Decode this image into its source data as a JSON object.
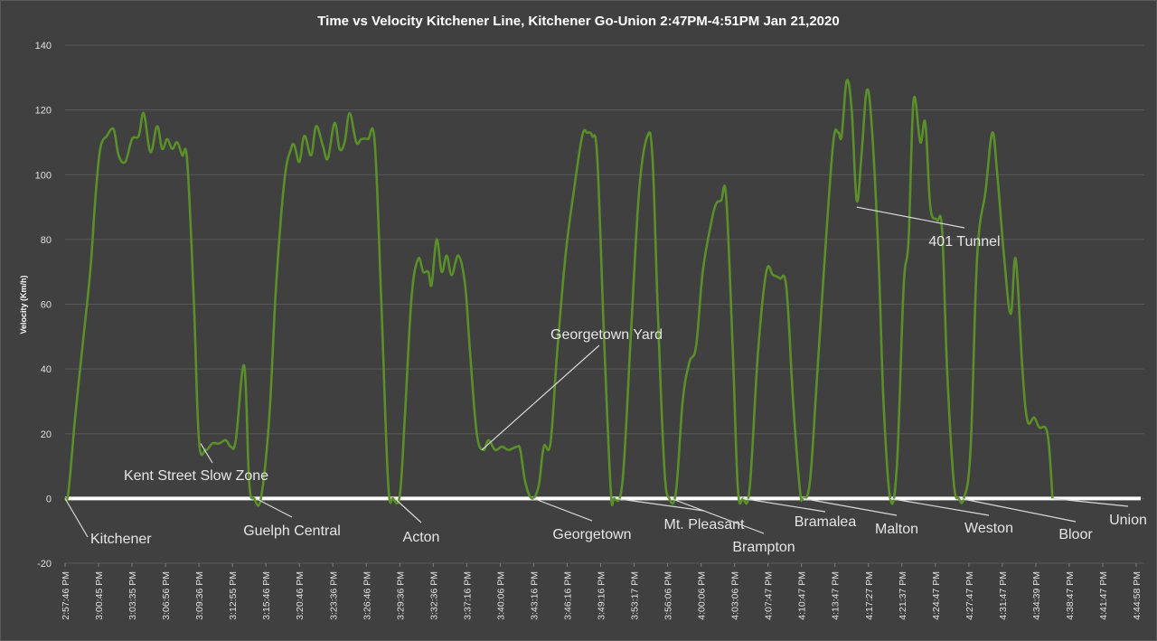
{
  "chart_data": {
    "type": "line",
    "title": "Time vs Velocity Kitchener Line, Kitchener Go-Union 2:47PM-4:51PM Jan 21,2020",
    "xlabel": "",
    "ylabel": "Velocity (Km/h)",
    "ylim": [
      -20,
      140
    ],
    "yticks": [
      -20,
      0,
      20,
      40,
      60,
      80,
      100,
      120,
      140
    ],
    "ytick_labels": [
      "-20",
      "0",
      "20",
      "40",
      "60",
      "80",
      "100",
      "120",
      "140"
    ],
    "xlim": [
      0,
      31
    ],
    "grid": true,
    "line_color": "#5a8f29",
    "zero_line_color": "#ffffff",
    "x_ticks": [
      {
        "pos": 0,
        "label": "2:57:46 PM"
      },
      {
        "pos": 1,
        "label": "3:00:45 PM"
      },
      {
        "pos": 2,
        "label": "3:03:35 PM"
      },
      {
        "pos": 3,
        "label": "3:06:56 PM"
      },
      {
        "pos": 4,
        "label": "3:09:36 PM"
      },
      {
        "pos": 5,
        "label": "3:12:55 PM"
      },
      {
        "pos": 6,
        "label": "3:15:46 PM"
      },
      {
        "pos": 7,
        "label": "3:20:46 PM"
      },
      {
        "pos": 8,
        "label": "3:23:36 PM"
      },
      {
        "pos": 9,
        "label": "3:26:46 PM"
      },
      {
        "pos": 10,
        "label": "3:29:36 PM"
      },
      {
        "pos": 11,
        "label": "3:32:36 PM"
      },
      {
        "pos": 12,
        "label": "3:37:16 PM"
      },
      {
        "pos": 13,
        "label": "3:40:06 PM"
      },
      {
        "pos": 14,
        "label": "3:43:16 PM"
      },
      {
        "pos": 15,
        "label": "3:46:16 PM"
      },
      {
        "pos": 16,
        "label": "3:49:16 PM"
      },
      {
        "pos": 17,
        "label": "3:53:17 PM"
      },
      {
        "pos": 18,
        "label": "3:56:06 PM"
      },
      {
        "pos": 19,
        "label": "4:00:06 PM"
      },
      {
        "pos": 20,
        "label": "4:03:06 PM"
      },
      {
        "pos": 21,
        "label": "4:07:47 PM"
      },
      {
        "pos": 22,
        "label": "4:10:47 PM"
      },
      {
        "pos": 23,
        "label": "4:13:47 PM"
      },
      {
        "pos": 24,
        "label": "4:17:27 PM"
      },
      {
        "pos": 25,
        "label": "4:21:37 PM"
      },
      {
        "pos": 26,
        "label": "4:24:47 PM"
      },
      {
        "pos": 27,
        "label": "4:27:47 PM"
      },
      {
        "pos": 28,
        "label": "4:31:47 PM"
      },
      {
        "pos": 29,
        "label": "4:34:39 PM"
      },
      {
        "pos": 30,
        "label": "4:38:47 PM"
      },
      {
        "pos": 31,
        "label": "4:41:47 PM"
      },
      {
        "pos": 32,
        "label": "4:44:58 PM"
      }
    ],
    "series": [
      {
        "name": "Velocity",
        "points": [
          [
            0,
            0
          ],
          [
            0.1,
            2
          ],
          [
            0.3,
            25
          ],
          [
            0.5,
            45
          ],
          [
            0.75,
            70
          ],
          [
            0.9,
            92
          ],
          [
            1.05,
            108
          ],
          [
            1.25,
            112
          ],
          [
            1.45,
            114
          ],
          [
            1.6,
            106
          ],
          [
            1.8,
            104
          ],
          [
            2.0,
            111
          ],
          [
            2.2,
            112
          ],
          [
            2.35,
            119
          ],
          [
            2.55,
            107
          ],
          [
            2.75,
            115
          ],
          [
            2.9,
            108
          ],
          [
            3.05,
            111
          ],
          [
            3.2,
            108
          ],
          [
            3.35,
            110
          ],
          [
            3.5,
            106
          ],
          [
            3.65,
            104
          ],
          [
            3.85,
            60
          ],
          [
            4.0,
            18
          ],
          [
            4.2,
            15
          ],
          [
            4.4,
            17
          ],
          [
            4.6,
            17
          ],
          [
            4.8,
            18
          ],
          [
            4.95,
            16
          ],
          [
            5.1,
            18
          ],
          [
            5.35,
            41
          ],
          [
            5.5,
            5
          ],
          [
            5.65,
            0
          ],
          [
            5.85,
            0
          ],
          [
            6.1,
            25
          ],
          [
            6.3,
            65
          ],
          [
            6.55,
            98
          ],
          [
            6.75,
            108
          ],
          [
            6.85,
            109
          ],
          [
            7.0,
            104
          ],
          [
            7.15,
            112
          ],
          [
            7.35,
            106
          ],
          [
            7.5,
            115
          ],
          [
            7.7,
            109
          ],
          [
            7.85,
            105
          ],
          [
            8.05,
            116
          ],
          [
            8.2,
            108
          ],
          [
            8.35,
            110
          ],
          [
            8.5,
            119
          ],
          [
            8.7,
            110
          ],
          [
            8.85,
            111
          ],
          [
            9.05,
            111
          ],
          [
            9.25,
            110
          ],
          [
            9.45,
            60
          ],
          [
            9.65,
            5
          ],
          [
            9.8,
            0
          ],
          [
            10.0,
            1
          ],
          [
            10.15,
            25
          ],
          [
            10.35,
            62
          ],
          [
            10.55,
            74
          ],
          [
            10.7,
            70
          ],
          [
            10.85,
            70
          ],
          [
            10.95,
            66
          ],
          [
            11.1,
            80
          ],
          [
            11.25,
            70
          ],
          [
            11.4,
            75
          ],
          [
            11.55,
            69
          ],
          [
            11.75,
            75
          ],
          [
            11.95,
            66
          ],
          [
            12.1,
            45
          ],
          [
            12.3,
            20
          ],
          [
            12.5,
            15
          ],
          [
            12.65,
            18
          ],
          [
            12.85,
            15
          ],
          [
            13.05,
            16
          ],
          [
            13.25,
            15
          ],
          [
            13.5,
            16
          ],
          [
            13.6,
            15
          ],
          [
            13.75,
            5
          ],
          [
            13.95,
            0
          ],
          [
            14.15,
            4
          ],
          [
            14.3,
            16
          ],
          [
            14.5,
            17
          ],
          [
            14.7,
            45
          ],
          [
            14.95,
            75
          ],
          [
            15.2,
            95
          ],
          [
            15.45,
            112
          ],
          [
            15.6,
            113
          ],
          [
            15.75,
            112
          ],
          [
            15.9,
            105
          ],
          [
            16.1,
            50
          ],
          [
            16.3,
            3
          ],
          [
            16.4,
            0
          ],
          [
            16.65,
            5
          ],
          [
            16.9,
            50
          ],
          [
            17.15,
            95
          ],
          [
            17.4,
            112
          ],
          [
            17.55,
            105
          ],
          [
            17.7,
            60
          ],
          [
            17.9,
            10
          ],
          [
            18.05,
            0
          ],
          [
            18.25,
            2
          ],
          [
            18.45,
            30
          ],
          [
            18.65,
            42
          ],
          [
            18.85,
            47
          ],
          [
            19.05,
            70
          ],
          [
            19.3,
            85
          ],
          [
            19.45,
            91
          ],
          [
            19.6,
            92
          ],
          [
            19.75,
            93
          ],
          [
            19.95,
            45
          ],
          [
            20.1,
            3
          ],
          [
            20.25,
            0
          ],
          [
            20.45,
            3
          ],
          [
            20.7,
            45
          ],
          [
            20.95,
            70
          ],
          [
            21.15,
            69
          ],
          [
            21.35,
            68
          ],
          [
            21.55,
            65
          ],
          [
            21.75,
            30
          ],
          [
            21.95,
            3
          ],
          [
            22.05,
            0
          ],
          [
            22.25,
            5
          ],
          [
            22.45,
            35
          ],
          [
            22.7,
            75
          ],
          [
            22.95,
            110
          ],
          [
            23.1,
            113
          ],
          [
            23.2,
            112
          ],
          [
            23.35,
            129
          ],
          [
            23.5,
            120
          ],
          [
            23.65,
            92
          ],
          [
            23.8,
            107
          ],
          [
            23.95,
            126
          ],
          [
            24.1,
            115
          ],
          [
            24.3,
            75
          ],
          [
            24.45,
            30
          ],
          [
            24.65,
            0
          ],
          [
            24.85,
            10
          ],
          [
            25.05,
            65
          ],
          [
            25.2,
            80
          ],
          [
            25.35,
            123
          ],
          [
            25.55,
            110
          ],
          [
            25.7,
            116
          ],
          [
            25.85,
            90
          ],
          [
            26.05,
            86
          ],
          [
            26.2,
            83
          ],
          [
            26.35,
            40
          ],
          [
            26.55,
            5
          ],
          [
            26.7,
            0
          ],
          [
            26.85,
            0
          ],
          [
            27.05,
            15
          ],
          [
            27.25,
            75
          ],
          [
            27.5,
            95
          ],
          [
            27.7,
            113
          ],
          [
            27.85,
            100
          ],
          [
            28.05,
            75
          ],
          [
            28.25,
            57
          ],
          [
            28.4,
            74
          ],
          [
            28.6,
            40
          ],
          [
            28.75,
            24
          ],
          [
            28.95,
            25
          ],
          [
            29.1,
            22
          ],
          [
            29.35,
            20
          ],
          [
            29.5,
            0
          ]
        ]
      }
    ],
    "annotations": [
      {
        "text": "Kitchener",
        "point_x": 0.0,
        "point_y": 0
      },
      {
        "text": "Kent Street Slow Zone",
        "point_x": 4.05,
        "point_y": 17
      },
      {
        "text": "Guelph Central",
        "point_x": 5.7,
        "point_y": 0
      },
      {
        "text": "Acton",
        "point_x": 9.85,
        "point_y": 0
      },
      {
        "text": "Georgetown Yard",
        "point_x": 12.45,
        "point_y": 15
      },
      {
        "text": "Georgetown",
        "point_x": 14.0,
        "point_y": 0
      },
      {
        "text": "Mt. Pleasant",
        "point_x": 16.45,
        "point_y": 0
      },
      {
        "text": "Brampton",
        "point_x": 18.1,
        "point_y": 0
      },
      {
        "text": "Bramalea",
        "point_x": 20.25,
        "point_y": 0
      },
      {
        "text": "Malton",
        "point_x": 22.05,
        "point_y": 0
      },
      {
        "text": "401 Tunnel",
        "point_x": 23.65,
        "point_y": 90
      },
      {
        "text": "Weston",
        "point_x": 24.65,
        "point_y": 0
      },
      {
        "text": "Bloor",
        "point_x": 26.75,
        "point_y": 0
      },
      {
        "text": "Union",
        "point_x": 29.5,
        "point_y": 0
      }
    ]
  }
}
